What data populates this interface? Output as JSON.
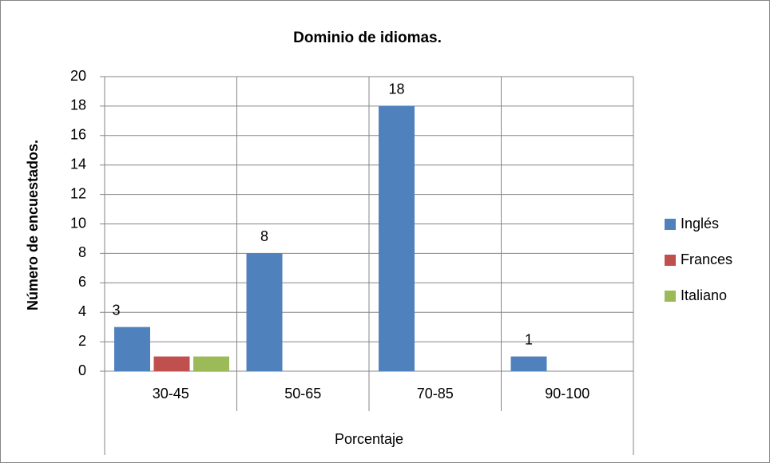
{
  "chart_data": {
    "type": "bar",
    "title": "Dominio de idiomas.",
    "y_label": "Número de  encuestados.",
    "x_label": "Porcentaje",
    "categories": [
      "30-45",
      "50-65",
      "70-85",
      "90-100"
    ],
    "series": [
      {
        "name": "Inglés",
        "color": "#4f81bd",
        "values": [
          3,
          8,
          18,
          1
        ],
        "data_labels": true
      },
      {
        "name": "Frances",
        "color": "#c0504d",
        "values": [
          1,
          0,
          0,
          0
        ]
      },
      {
        "name": "Italiano",
        "color": "#9bbb59",
        "values": [
          1,
          0,
          0,
          0
        ]
      }
    ],
    "ylim": [
      0,
      20
    ],
    "yticks": [
      0,
      2,
      4,
      6,
      8,
      10,
      12,
      14,
      16,
      18,
      20
    ],
    "grid": true,
    "legend": "right"
  }
}
